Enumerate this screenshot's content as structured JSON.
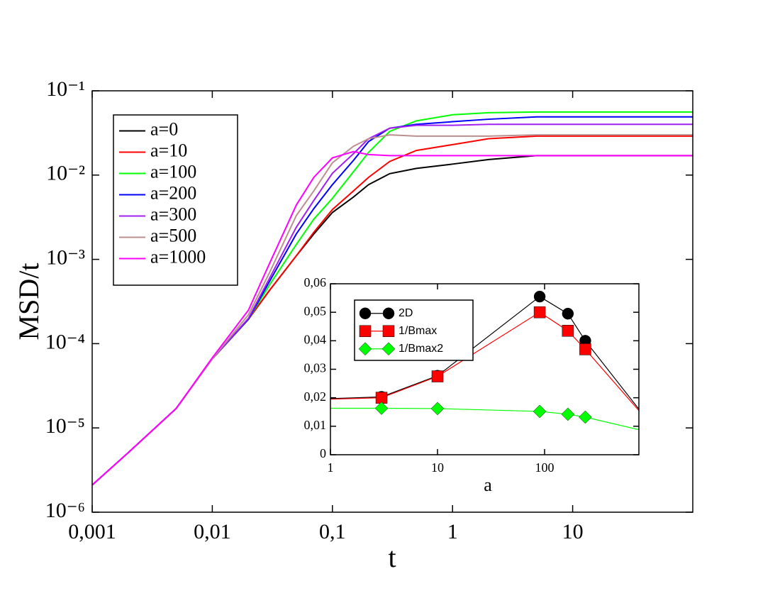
{
  "chart_data": [
    {
      "type": "line",
      "xlabel": "t",
      "ylabel": "MSD/t",
      "xlog": true,
      "ylog": true,
      "xlim": [
        0.001,
        100
      ],
      "ylim": [
        1e-06,
        0.1
      ],
      "xticks": [
        {
          "value": 0.001,
          "label": "0,001"
        },
        {
          "value": 0.01,
          "label": "0,01"
        },
        {
          "value": 0.1,
          "label": "0,1"
        },
        1,
        10
      ],
      "yticks": [
        {
          "value": 0.1,
          "label": "10⁻¹"
        },
        {
          "value": 0.01,
          "label": "10⁻²"
        },
        {
          "value": 0.001,
          "label": "10⁻³"
        },
        {
          "value": 0.0001,
          "label": "10⁻⁴"
        },
        {
          "value": 1e-05,
          "label": "10⁻⁵"
        },
        {
          "value": 1e-06,
          "label": "10⁻⁶"
        }
      ],
      "legend": "upper left",
      "x": [
        0.001,
        0.002,
        0.005,
        0.01,
        0.02,
        0.03,
        0.05,
        0.07,
        0.1,
        0.15,
        0.2,
        0.3,
        0.5,
        1,
        2,
        5,
        10,
        100
      ],
      "series": [
        {
          "name": "a=0",
          "color": "#000000",
          "values": [
            2.1e-06,
            5.1e-06,
            1.7e-05,
            6.6e-05,
            0.000195,
            0.00043,
            0.0011,
            0.002,
            0.0036,
            0.0055,
            0.0077,
            0.0104,
            0.012,
            0.0135,
            0.0153,
            0.017,
            0.017,
            0.017
          ]
        },
        {
          "name": "a=10",
          "color": "#ff0000",
          "values": [
            2.1e-06,
            5.1e-06,
            1.7e-05,
            6.6e-05,
            0.000195,
            0.00043,
            0.0011,
            0.0021,
            0.0039,
            0.0065,
            0.0094,
            0.0145,
            0.0196,
            0.023,
            0.027,
            0.029,
            0.029,
            0.029
          ]
        },
        {
          "name": "a=100",
          "color": "#00ff00",
          "values": [
            2.1e-06,
            5.1e-06,
            1.7e-05,
            6.6e-05,
            0.000195,
            0.0005,
            0.0015,
            0.003,
            0.0053,
            0.011,
            0.0186,
            0.033,
            0.044,
            0.052,
            0.055,
            0.056,
            0.056,
            0.056
          ]
        },
        {
          "name": "a=200",
          "color": "#0000ff",
          "values": [
            2.1e-06,
            5.1e-06,
            1.7e-05,
            6.6e-05,
            0.000195,
            0.00055,
            0.002,
            0.004,
            0.0077,
            0.015,
            0.025,
            0.036,
            0.04,
            0.043,
            0.046,
            0.049,
            0.049,
            0.049
          ]
        },
        {
          "name": "a=300",
          "color": "#a020f0",
          "values": [
            2.1e-06,
            5.1e-06,
            1.7e-05,
            6.6e-05,
            0.0002,
            0.0006,
            0.0024,
            0.005,
            0.0105,
            0.018,
            0.027,
            0.036,
            0.039,
            0.039,
            0.04,
            0.04,
            0.04,
            0.04
          ]
        },
        {
          "name": "a=500",
          "color": "#bc8f8f",
          "values": [
            2.1e-06,
            5.1e-06,
            1.7e-05,
            6.6e-05,
            0.00022,
            0.0007,
            0.0033,
            0.0065,
            0.014,
            0.022,
            0.027,
            0.03,
            0.029,
            0.029,
            0.029,
            0.03,
            0.03,
            0.03
          ]
        },
        {
          "name": "a=1000",
          "color": "#ff00ff",
          "values": [
            2.1e-06,
            5.1e-06,
            1.7e-05,
            6.8e-05,
            0.00025,
            0.0009,
            0.0044,
            0.0094,
            0.016,
            0.019,
            0.0175,
            0.017,
            0.017,
            0.017,
            0.017,
            0.017,
            0.017,
            0.017
          ]
        }
      ]
    },
    {
      "type": "line",
      "xlabel": "a",
      "xlog": true,
      "xlim": [
        1,
        760
      ],
      "ylim": [
        0,
        0.06
      ],
      "xticks": [
        1,
        10,
        100
      ],
      "yticks": [
        0,
        {
          "value": 0.01,
          "label": "0,01"
        },
        {
          "value": 0.02,
          "label": "0,02"
        },
        {
          "value": 0.03,
          "label": "0,03"
        },
        {
          "value": 0.04,
          "label": "0,04"
        },
        {
          "value": 0.05,
          "label": "0,05"
        },
        {
          "value": 0.06,
          "label": "0,06"
        }
      ],
      "legend": "upper left",
      "x": [
        1,
        3,
        10,
        90,
        165,
        240,
        760
      ],
      "series": [
        {
          "name": "2D",
          "color": "#000000",
          "marker": "circle",
          "values": [
            0.0197,
            0.0203,
            0.0277,
            0.0555,
            0.0495,
            0.04,
            0.016
          ]
        },
        {
          "name": "1/Bmax",
          "color": "#ff0000",
          "marker": "square",
          "values": [
            0.0195,
            0.02,
            0.0275,
            0.05,
            0.0435,
            0.037,
            0.0155
          ]
        },
        {
          "name": "1/Bmax2",
          "color": "#00ff00",
          "marker": "diamond",
          "values": [
            0.0163,
            0.0163,
            0.0162,
            0.0152,
            0.0142,
            0.0132,
            0.0088
          ]
        }
      ]
    }
  ]
}
